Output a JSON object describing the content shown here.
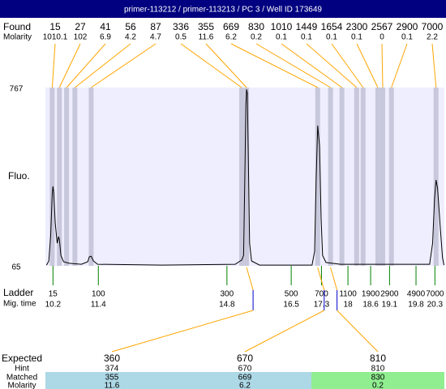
{
  "chart_data": {
    "type": "electropherogram",
    "title": "primer-113212 / primer-113213 / PC 3 / Well ID 173649",
    "found": {
      "label": "Found",
      "molarity_label": "Molarity",
      "sizes": [
        15,
        27,
        41,
        56,
        87,
        336,
        355,
        669,
        830,
        1010,
        1449,
        1654,
        2300,
        2567,
        2900,
        7000
      ],
      "molarity": [
        1010.1,
        102,
        6.9,
        4.2,
        4.7,
        0.5,
        11.6,
        6.2,
        0.2,
        0.1,
        0.1,
        0.1,
        0.1,
        0,
        0.1,
        2.2
      ],
      "times": [
        10.18,
        10.37,
        10.56,
        10.78,
        11.21,
        15.19,
        15.32,
        17.2,
        17.54,
        17.84,
        18.23,
        18.4,
        18.79,
        18.92,
        19.15,
        20.33
      ]
    },
    "y_label": "Fluo.",
    "ylim": [
      65,
      767
    ],
    "yticks": [
      65,
      767
    ],
    "xlim": [
      10,
      20.55
    ],
    "trace": {
      "color": "#000000",
      "x": [
        10.03,
        10.09,
        10.14,
        10.18,
        10.2,
        10.22,
        10.26,
        10.31,
        10.35,
        10.37,
        10.41,
        10.48,
        10.63,
        10.95,
        11.12,
        11.16,
        11.21,
        11.27,
        11.38,
        13.09,
        15.02,
        15.15,
        15.19,
        15.24,
        15.28,
        15.3,
        15.32,
        15.34,
        15.36,
        15.4,
        15.45,
        15.66,
        17.05,
        17.12,
        17.16,
        17.2,
        17.25,
        17.29,
        17.33,
        17.42,
        17.8,
        20.16,
        20.24,
        20.29,
        20.33,
        20.37,
        20.44,
        20.5,
        20.54
      ],
      "values": [
        68,
        84,
        186,
        346,
        378,
        352,
        234,
        154,
        180,
        167,
        106,
        81,
        75,
        71,
        81,
        100,
        103,
        84,
        71,
        68,
        71,
        84,
        87,
        106,
        473,
        697,
        760,
        745,
        537,
        154,
        84,
        68,
        68,
        122,
        410,
        617,
        537,
        250,
        106,
        78,
        71,
        71,
        154,
        330,
        403,
        371,
        218,
        97,
        68
      ]
    },
    "ladder": {
      "label": "Ladder",
      "time_label": "Mig. time",
      "color": "#008000",
      "sizes": [
        15,
        100,
        300,
        500,
        700,
        1100,
        1900,
        2900,
        4900,
        7000
      ],
      "times": [
        10.2,
        11.4,
        14.8,
        16.5,
        17.3,
        18,
        18.6,
        19.1,
        19.8,
        20.3
      ]
    },
    "results": {
      "row_labels": [
        "Expected",
        "Hint",
        "Matched",
        "Molarity"
      ],
      "expected": [
        360,
        670,
        810
      ],
      "hint": [
        374,
        670,
        810
      ],
      "matched": [
        355,
        669,
        830
      ],
      "molarity": [
        11.6,
        6.2,
        0.2
      ],
      "colors": [
        "#add8e6",
        "#add8e6",
        "#90ee90"
      ]
    }
  }
}
